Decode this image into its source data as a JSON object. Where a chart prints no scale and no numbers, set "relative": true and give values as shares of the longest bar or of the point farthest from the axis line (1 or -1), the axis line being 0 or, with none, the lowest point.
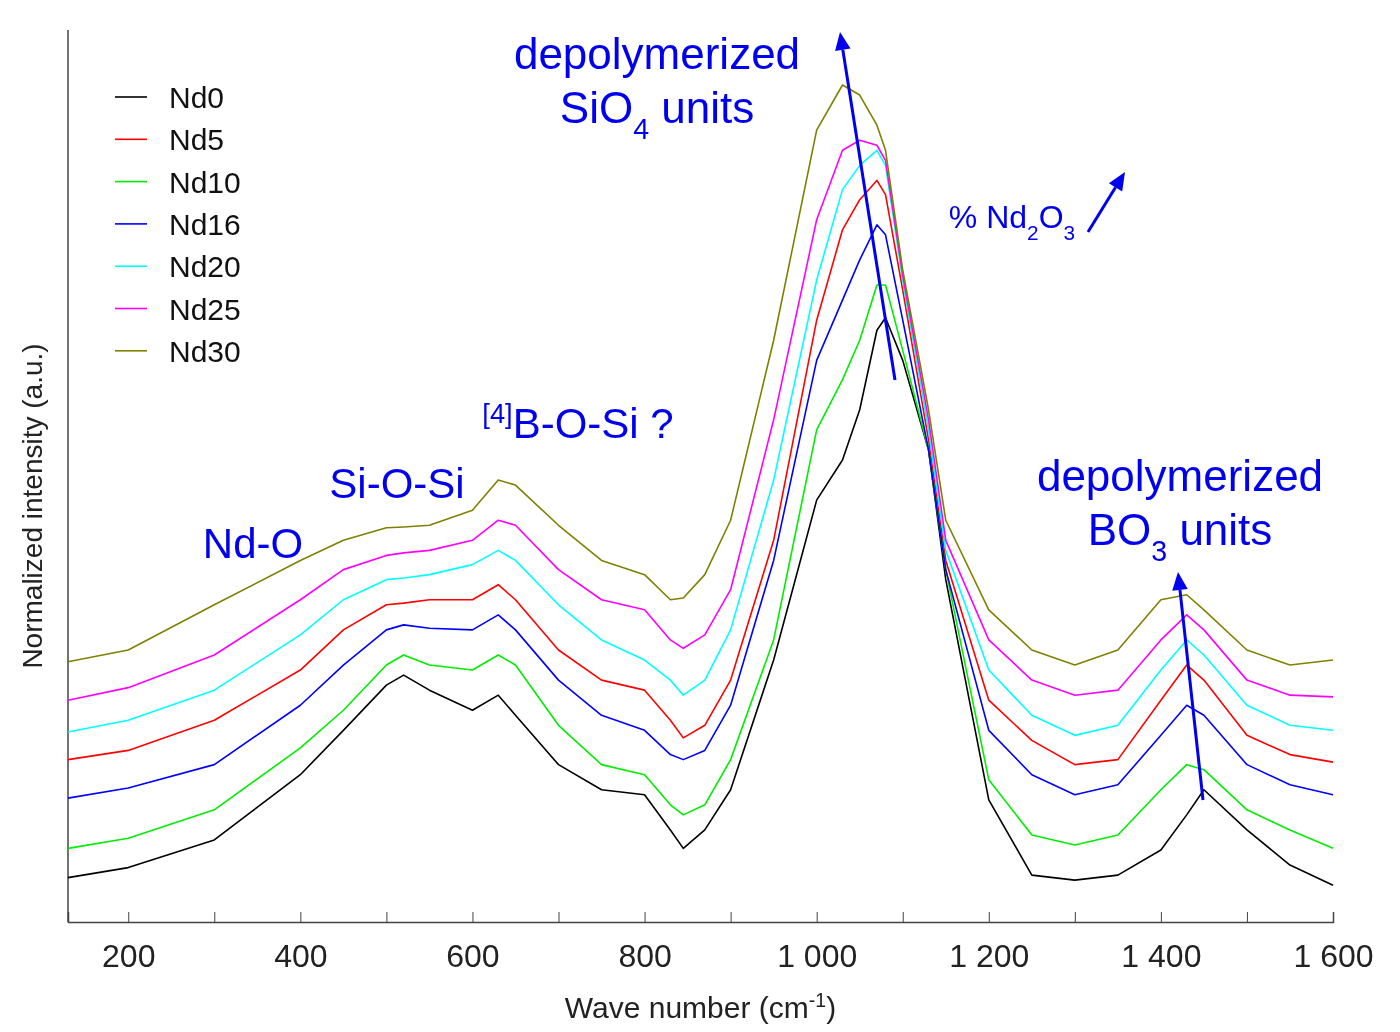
{
  "chart_data": {
    "type": "line",
    "relative": true,
    "xlabel": "Wave number (cm$^{-1}$)",
    "ylabel": "Normalized intensity (a.u.)",
    "xlim": [
      130,
      1600
    ],
    "xticks": [
      {
        "value": 200,
        "label": "200"
      },
      {
        "value": 300,
        "label": null
      },
      {
        "value": 400,
        "label": "400"
      },
      {
        "value": 500,
        "label": null
      },
      {
        "value": 600,
        "label": "600"
      },
      {
        "value": 700,
        "label": null
      },
      {
        "value": 800,
        "label": "800"
      },
      {
        "value": 900,
        "label": null
      },
      {
        "value": 1000,
        "label": "1 000"
      },
      {
        "value": 1100,
        "label": null
      },
      {
        "value": 1200,
        "label": "1 200"
      },
      {
        "value": 1300,
        "label": null
      },
      {
        "value": 1400,
        "label": "1 400"
      },
      {
        "value": 1500,
        "label": null
      },
      {
        "value": 1600,
        "label": "1 600"
      }
    ],
    "x": [
      130,
      200,
      300,
      400,
      450,
      500,
      520,
      550,
      600,
      630,
      650,
      700,
      750,
      800,
      830,
      845,
      870,
      900,
      950,
      1000,
      1030,
      1050,
      1070,
      1080,
      1100,
      1130,
      1150,
      1200,
      1250,
      1300,
      1350,
      1400,
      1430,
      1450,
      1500,
      1550,
      1600
    ],
    "legend": "top left",
    "grid": false,
    "line_style": "solid",
    "marker": "none",
    "series": [
      {
        "name": "Nd0",
        "color": "#000000",
        "values": [
          0.053,
          0.065,
          0.098,
          0.176,
          0.229,
          0.283,
          0.295,
          0.277,
          0.253,
          0.271,
          0.247,
          0.188,
          0.158,
          0.152,
          0.11,
          0.088,
          0.11,
          0.158,
          0.313,
          0.504,
          0.552,
          0.612,
          0.707,
          0.722,
          0.671,
          0.564,
          0.409,
          0.146,
          0.056,
          0.05,
          0.056,
          0.086,
          0.128,
          0.158,
          0.11,
          0.068,
          0.044
        ]
      },
      {
        "name": "Nd5",
        "color": "#ff0000",
        "values": [
          0.194,
          0.205,
          0.241,
          0.301,
          0.349,
          0.379,
          0.381,
          0.385,
          0.385,
          0.403,
          0.385,
          0.325,
          0.289,
          0.277,
          0.241,
          0.22,
          0.235,
          0.289,
          0.456,
          0.719,
          0.827,
          0.863,
          0.886,
          0.869,
          0.755,
          0.576,
          0.432,
          0.265,
          0.217,
          0.188,
          0.194,
          0.265,
          0.307,
          0.289,
          0.223,
          0.2,
          0.191
        ]
      },
      {
        "name": "Nd10",
        "color": "#00ee00",
        "values": [
          0.088,
          0.1,
          0.134,
          0.208,
          0.253,
          0.307,
          0.319,
          0.307,
          0.301,
          0.319,
          0.307,
          0.235,
          0.188,
          0.176,
          0.14,
          0.128,
          0.14,
          0.194,
          0.337,
          0.588,
          0.648,
          0.695,
          0.761,
          0.761,
          0.683,
          0.564,
          0.421,
          0.17,
          0.104,
          0.092,
          0.104,
          0.158,
          0.188,
          0.182,
          0.134,
          0.11,
          0.088
        ]
      },
      {
        "name": "Nd16",
        "color": "#0000ff",
        "values": [
          0.148,
          0.16,
          0.188,
          0.259,
          0.307,
          0.349,
          0.355,
          0.351,
          0.349,
          0.367,
          0.349,
          0.289,
          0.247,
          0.229,
          0.2,
          0.194,
          0.205,
          0.259,
          0.432,
          0.671,
          0.743,
          0.791,
          0.833,
          0.821,
          0.719,
          0.564,
          0.421,
          0.229,
          0.176,
          0.152,
          0.164,
          0.223,
          0.259,
          0.247,
          0.188,
          0.164,
          0.152
        ]
      },
      {
        "name": "Nd20",
        "color": "#00ffff",
        "values": [
          0.227,
          0.241,
          0.277,
          0.343,
          0.385,
          0.409,
          0.411,
          0.415,
          0.427,
          0.444,
          0.432,
          0.379,
          0.337,
          0.313,
          0.289,
          0.271,
          0.289,
          0.349,
          0.528,
          0.767,
          0.875,
          0.904,
          0.922,
          0.904,
          0.767,
          0.588,
          0.444,
          0.301,
          0.247,
          0.223,
          0.235,
          0.301,
          0.337,
          0.319,
          0.259,
          0.235,
          0.229
        ]
      },
      {
        "name": "Nd25",
        "color": "#ff00ff",
        "values": [
          0.265,
          0.28,
          0.319,
          0.385,
          0.421,
          0.438,
          0.441,
          0.444,
          0.456,
          0.48,
          0.474,
          0.421,
          0.385,
          0.373,
          0.337,
          0.327,
          0.343,
          0.397,
          0.6,
          0.839,
          0.922,
          0.934,
          0.928,
          0.91,
          0.773,
          0.6,
          0.456,
          0.337,
          0.289,
          0.271,
          0.277,
          0.337,
          0.367,
          0.349,
          0.289,
          0.271,
          0.269
        ]
      },
      {
        "name": "Nd30",
        "color": "#808000",
        "values": [
          0.311,
          0.325,
          0.379,
          0.432,
          0.456,
          0.471,
          0.472,
          0.474,
          0.492,
          0.528,
          0.522,
          0.474,
          0.432,
          0.415,
          0.385,
          0.387,
          0.415,
          0.48,
          0.695,
          0.946,
          1,
          0.988,
          0.952,
          0.922,
          0.779,
          0.612,
          0.48,
          0.373,
          0.325,
          0.307,
          0.325,
          0.385,
          0.391,
          0.373,
          0.325,
          0.307,
          0.313
        ]
      }
    ],
    "annotations": [
      "depolymerized\nSiO$_{4}$ units",
      "% Nd$_{2}$O$_{3}$",
      "Nd-O",
      "Si-O-Si",
      "$^{[4]}$B-O-Si ?",
      "depolymerized\nBO$_{3}$ units"
    ]
  }
}
